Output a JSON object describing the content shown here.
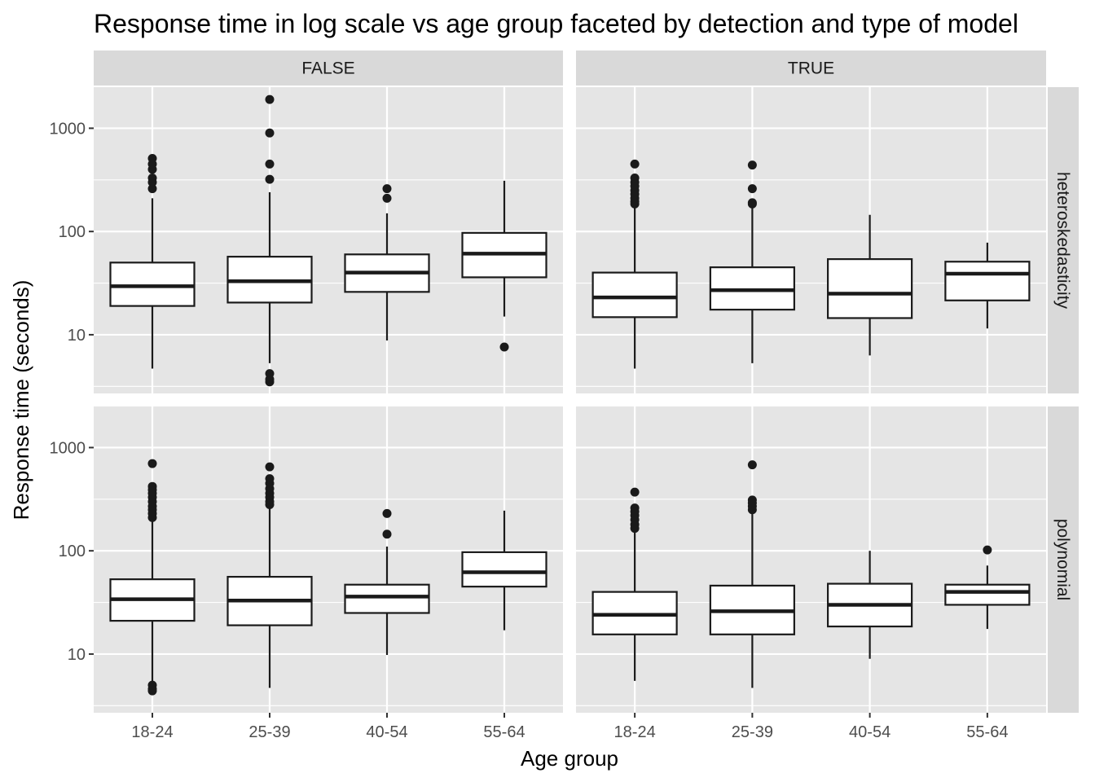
{
  "chart_data": {
    "type": "boxplot",
    "title": "Response time in log scale vs age group faceted by detection and type of model",
    "xlabel": "Age group",
    "ylabel": "Response time (seconds)",
    "y_scale": "log10",
    "ylim": [
      2.7,
      2500
    ],
    "y_ticks": [
      10,
      100,
      1000
    ],
    "y_tick_labels": [
      "10",
      "100",
      "1000"
    ],
    "categories": [
      "18-24",
      "25-39",
      "40-54",
      "55-64"
    ],
    "facet_columns": [
      "FALSE",
      "TRUE"
    ],
    "facet_rows": [
      "heteroskedasticity",
      "polynomial"
    ],
    "grid": true,
    "panels": [
      {
        "col": "FALSE",
        "row": "heteroskedasticity",
        "boxes": [
          {
            "group": "18-24",
            "lower_whisker": 4.7,
            "q1": 19,
            "median": 29.5,
            "q3": 50,
            "upper_whisker": 210,
            "outliers": [
              260,
              300,
              330,
              400,
              450,
              510
            ]
          },
          {
            "group": "25-39",
            "lower_whisker": 5.3,
            "q1": 20.5,
            "median": 33,
            "q3": 57,
            "upper_whisker": 240,
            "outliers": [
              3.5,
              3.7,
              4.2,
              320,
              450,
              900,
              1900
            ]
          },
          {
            "group": "40-54",
            "lower_whisker": 8.8,
            "q1": 26,
            "median": 40,
            "q3": 60,
            "upper_whisker": 150,
            "outliers": [
              210,
              260
            ]
          },
          {
            "group": "55-64",
            "lower_whisker": 15,
            "q1": 36,
            "median": 61,
            "q3": 97,
            "upper_whisker": 310,
            "outliers": [
              7.6
            ]
          }
        ]
      },
      {
        "col": "TRUE",
        "row": "heteroskedasticity",
        "boxes": [
          {
            "group": "18-24",
            "lower_whisker": 4.7,
            "q1": 14.8,
            "median": 23,
            "q3": 40,
            "upper_whisker": 175,
            "outliers": [
              185,
              195,
              210,
              230,
              250,
              275,
              300,
              330,
              450
            ]
          },
          {
            "group": "25-39",
            "lower_whisker": 5.3,
            "q1": 17.5,
            "median": 27,
            "q3": 45,
            "upper_whisker": 175,
            "outliers": [
              185,
              190,
              260,
              440
            ]
          },
          {
            "group": "40-54",
            "lower_whisker": 6.3,
            "q1": 14.5,
            "median": 25,
            "q3": 54,
            "upper_whisker": 145,
            "outliers": []
          },
          {
            "group": "55-64",
            "lower_whisker": 11.5,
            "q1": 21.5,
            "median": 39,
            "q3": 51,
            "upper_whisker": 78,
            "outliers": []
          }
        ]
      },
      {
        "col": "FALSE",
        "row": "polynomial",
        "boxes": [
          {
            "group": "18-24",
            "lower_whisker": 5.3,
            "q1": 21,
            "median": 34,
            "q3": 53,
            "upper_whisker": 200,
            "outliers": [
              4.4,
              4.6,
              5.0,
              210,
              230,
              250,
              270,
              300,
              330,
              360,
              390,
              420,
              700
            ]
          },
          {
            "group": "25-39",
            "lower_whisker": 4.7,
            "q1": 19,
            "median": 33,
            "q3": 56,
            "upper_whisker": 270,
            "outliers": [
              280,
              300,
              330,
              360,
              400,
              450,
              500,
              650
            ]
          },
          {
            "group": "40-54",
            "lower_whisker": 9.8,
            "q1": 25,
            "median": 36,
            "q3": 47,
            "upper_whisker": 110,
            "outliers": [
              145,
              230
            ]
          },
          {
            "group": "55-64",
            "lower_whisker": 17,
            "q1": 45,
            "median": 62,
            "q3": 97,
            "upper_whisker": 245,
            "outliers": []
          }
        ]
      },
      {
        "col": "TRUE",
        "row": "polynomial",
        "boxes": [
          {
            "group": "18-24",
            "lower_whisker": 5.5,
            "q1": 15.5,
            "median": 24,
            "q3": 40,
            "upper_whisker": 155,
            "outliers": [
              165,
              180,
              200,
              220,
              240,
              260,
              370
            ]
          },
          {
            "group": "25-39",
            "lower_whisker": 4.7,
            "q1": 15.5,
            "median": 26,
            "q3": 46,
            "upper_whisker": 240,
            "outliers": [
              250,
              270,
              290,
              310,
              680
            ]
          },
          {
            "group": "40-54",
            "lower_whisker": 9.0,
            "q1": 18.5,
            "median": 30,
            "q3": 48,
            "upper_whisker": 100,
            "outliers": []
          },
          {
            "group": "55-64",
            "lower_whisker": 17.5,
            "q1": 30,
            "median": 40,
            "q3": 47,
            "upper_whisker": 72,
            "outliers": [
              102
            ]
          }
        ]
      }
    ]
  },
  "colors": {
    "panel_background": "#e5e5e5",
    "strip_background": "#d9d9d9",
    "grid_major": "#ffffff",
    "box_fill": "#ffffff",
    "box_stroke": "#1a1a1a",
    "outlier": "#1a1a1a",
    "tick_label": "#4d4d4d"
  }
}
